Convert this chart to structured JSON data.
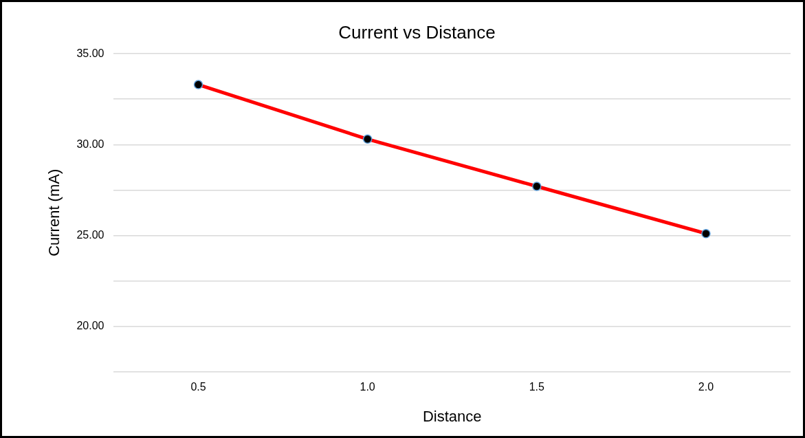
{
  "chart_data": {
    "type": "line",
    "title": "Current vs Distance",
    "xlabel": "Distance",
    "ylabel": "Current (mA)",
    "categories": [
      "0.5",
      "1.0",
      "1.5",
      "2.0"
    ],
    "series": [
      {
        "color": "#ff0000",
        "values": [
          33.3,
          30.3,
          27.7,
          25.1
        ]
      }
    ],
    "ylim": [
      17.5,
      35
    ],
    "yticks": [
      {
        "value": 17.5,
        "label": null
      },
      {
        "value": 20,
        "label": "20.00"
      },
      {
        "value": 22.5,
        "label": null
      },
      {
        "value": 25,
        "label": "25.00"
      },
      {
        "value": 27.5,
        "label": null
      },
      {
        "value": 30,
        "label": "30.00"
      },
      {
        "value": 32.5,
        "label": null
      },
      {
        "value": 35,
        "label": "35.00"
      }
    ],
    "grid": "y",
    "legend": false,
    "marker": "circle",
    "line_style": "solid"
  }
}
